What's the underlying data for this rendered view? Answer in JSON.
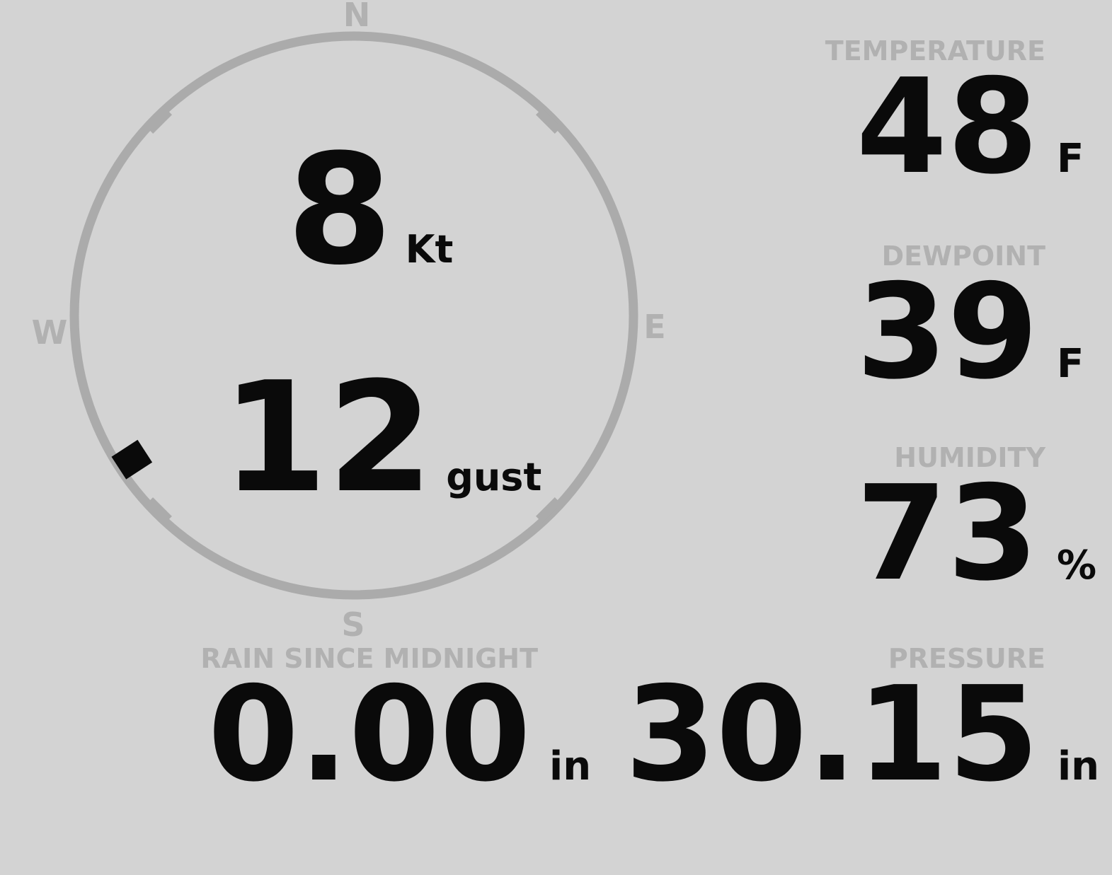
{
  "theme": {
    "bg": "#d3d3d3",
    "label": "#b1b1b1",
    "value": "#0a0a0a",
    "ring": "#ababab"
  },
  "wind": {
    "speed": "8",
    "speed_unit": "Kt",
    "gust": "12",
    "gust_unit": "gust",
    "direction_degrees": 237,
    "compass": {
      "north": "N",
      "east": "E",
      "south": "S",
      "west": "W"
    }
  },
  "metrics": {
    "temperature": {
      "label": "TEMPERATURE",
      "value": "48",
      "unit": "F"
    },
    "dewpoint": {
      "label": "DEWPOINT",
      "value": "39",
      "unit": "F"
    },
    "humidity": {
      "label": "HUMIDITY",
      "value": "73",
      "unit": "%"
    },
    "pressure": {
      "label": "PRESSURE",
      "value": "30.15",
      "unit": "in"
    },
    "rain": {
      "label": "RAIN SINCE MIDNIGHT",
      "value": "0.00",
      "unit": "in"
    }
  }
}
